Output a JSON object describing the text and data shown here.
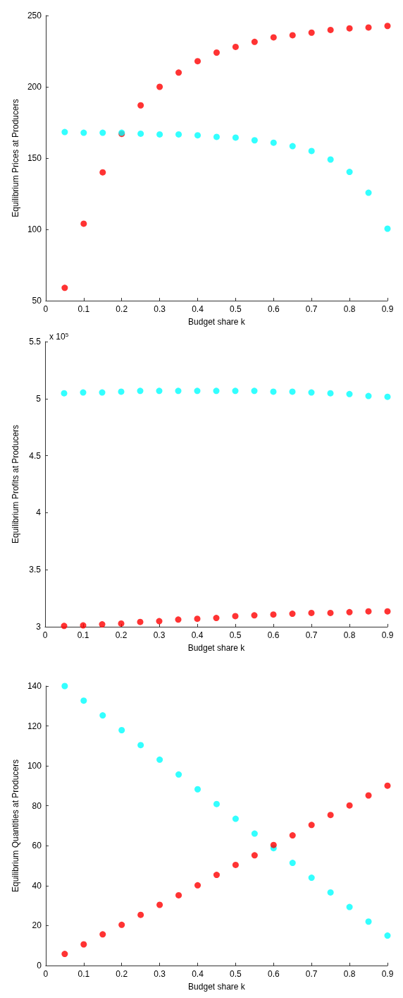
{
  "chart_data": [
    {
      "type": "scatter",
      "xlabel": "Budget share k",
      "ylabel": "Equilibrium Prices at Producers",
      "x": [
        0.05,
        0.1,
        0.15,
        0.2,
        0.25,
        0.3,
        0.35,
        0.4,
        0.45,
        0.5,
        0.55,
        0.6,
        0.65,
        0.7,
        0.75,
        0.8,
        0.85,
        0.9
      ],
      "xlim": [
        0,
        0.9
      ],
      "xticks": [
        0,
        0.1,
        0.2,
        0.3,
        0.4,
        0.5,
        0.6,
        0.7,
        0.8,
        0.9
      ],
      "ylim": [
        50,
        250
      ],
      "yticks": [
        50,
        100,
        150,
        200,
        250
      ],
      "grid": false,
      "marker": "circle",
      "series": [
        {
          "color": "#ff0000",
          "values": [
            59,
            104,
            140,
            167,
            187,
            200,
            210,
            218,
            224,
            228,
            231.5,
            234.7,
            236.2,
            238,
            239.9,
            241,
            241.6,
            242.7
          ]
        },
        {
          "color": "#00ffff",
          "values": [
            168.3,
            167.8,
            167.8,
            167.8,
            167.1,
            166.6,
            166.6,
            166,
            164.9,
            164.4,
            162.5,
            160.8,
            158.4,
            155,
            149,
            140.3,
            125.7,
            100.5
          ]
        }
      ]
    },
    {
      "type": "scatter",
      "xlabel": "Budget share k",
      "ylabel": "Equilibrium Profits at Producers",
      "annotations": [
        "x 10$^{5}$"
      ],
      "x": [
        0.05,
        0.1,
        0.15,
        0.2,
        0.25,
        0.3,
        0.35,
        0.4,
        0.45,
        0.5,
        0.55,
        0.6,
        0.65,
        0.7,
        0.75,
        0.8,
        0.85,
        0.9
      ],
      "xlim": [
        0,
        0.9
      ],
      "xticks": [
        0,
        0.1,
        0.2,
        0.3,
        0.4,
        0.5,
        0.6,
        0.7,
        0.8,
        0.9
      ],
      "ylim": [
        3,
        5.5
      ],
      "yticks": [
        3,
        3.5,
        4,
        4.5,
        5,
        5.5
      ],
      "grid": false,
      "marker": "circle",
      "series": [
        {
          "color": "#00ffff",
          "values": [
            5.047,
            5.054,
            5.054,
            5.061,
            5.068,
            5.068,
            5.068,
            5.068,
            5.068,
            5.068,
            5.068,
            5.061,
            5.061,
            5.054,
            5.047,
            5.04,
            5.023,
            5.016
          ]
        },
        {
          "color": "#ff0000",
          "values": [
            3.007,
            3.012,
            3.021,
            3.028,
            3.042,
            3.049,
            3.063,
            3.07,
            3.077,
            3.093,
            3.1,
            3.107,
            3.114,
            3.121,
            3.121,
            3.128,
            3.135,
            3.135
          ]
        }
      ]
    },
    {
      "type": "scatter",
      "xlabel": "Budget share k",
      "ylabel": "Equilibrium Quantities at Producers",
      "x": [
        0.05,
        0.1,
        0.15,
        0.2,
        0.25,
        0.3,
        0.35,
        0.4,
        0.45,
        0.5,
        0.55,
        0.6,
        0.65,
        0.7,
        0.75,
        0.8,
        0.85,
        0.9
      ],
      "xlim": [
        0,
        0.9
      ],
      "xticks": [
        0,
        0.1,
        0.2,
        0.3,
        0.4,
        0.5,
        0.6,
        0.7,
        0.8,
        0.9
      ],
      "ylim": [
        0,
        140
      ],
      "yticks": [
        0,
        20,
        40,
        60,
        80,
        100,
        120,
        140
      ],
      "grid": false,
      "marker": "circle",
      "series": [
        {
          "color": "#00ffff",
          "values": [
            140,
            132.7,
            125.3,
            117.9,
            110.4,
            103.1,
            95.7,
            88.3,
            80.9,
            73.5,
            66.1,
            58.8,
            51.4,
            44,
            36.6,
            29.3,
            22,
            15
          ]
        },
        {
          "color": "#ff0000",
          "values": [
            5.8,
            10.6,
            15.6,
            20.4,
            25.4,
            30.4,
            35.2,
            40.2,
            45.4,
            50.4,
            55.2,
            60.4,
            65.2,
            70.4,
            75.4,
            80.2,
            85.2,
            90.1
          ]
        }
      ]
    }
  ]
}
